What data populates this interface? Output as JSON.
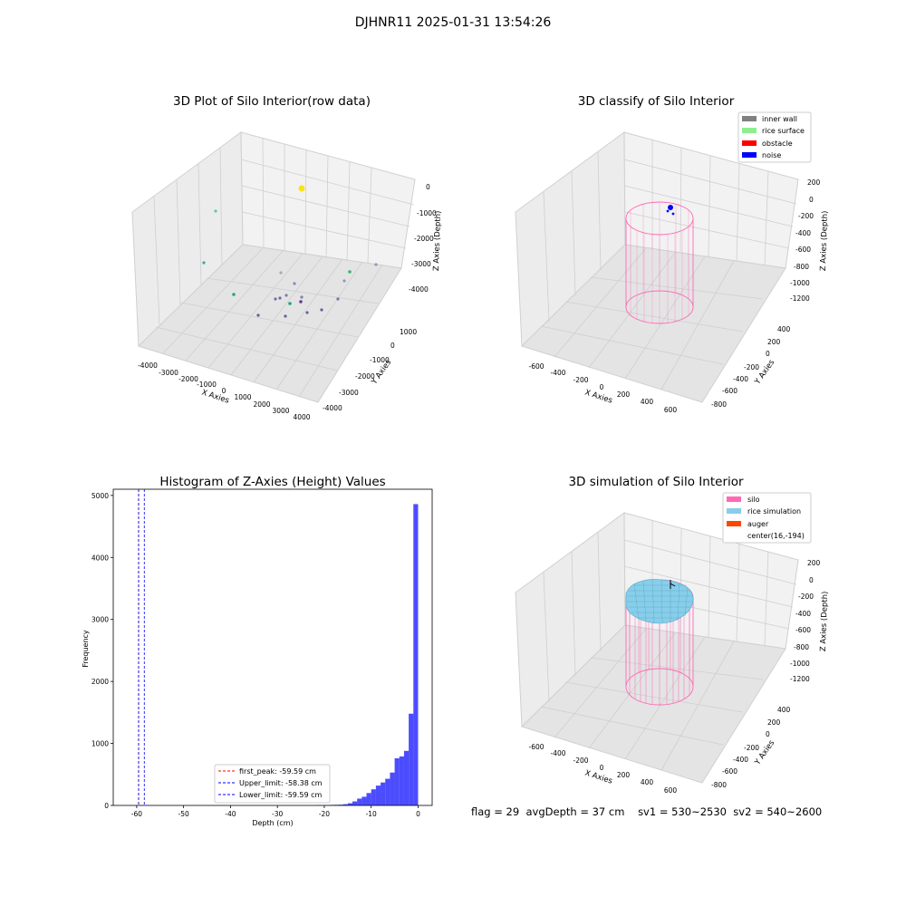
{
  "figure": {
    "suptitle": "DJHNR11 2025-01-31 13:54:26",
    "status": {
      "flag": "flag = 29",
      "avg_depth": "avgDepth = 37 cm",
      "sv1": "sv1 = 530~2530",
      "sv2": "sv2 = 540~2600"
    }
  },
  "plot_raw": {
    "title": "3D Plot of Silo Interior(row data)",
    "xlabel": "X Axies",
    "ylabel": "Y Axies",
    "zlabel": "Z Axies (Depth)",
    "xticks": [
      "-4000",
      "-3000",
      "-2000",
      "-1000",
      "0",
      "1000",
      "2000",
      "3000",
      "4000"
    ],
    "yticks": [
      "1000",
      "0",
      "-1000",
      "-2000",
      "-3000",
      "-4000"
    ],
    "zticks": [
      "0",
      "-1000",
      "-2000",
      "-3000",
      "-4000"
    ]
  },
  "plot_classify": {
    "title": "3D classify of Silo Interior",
    "xlabel": "X Axies",
    "ylabel": "Y Axies",
    "zlabel": "Z Axies (Depth)",
    "xticks": [
      "-600",
      "-400",
      "-200",
      "0",
      "200",
      "400",
      "600"
    ],
    "yticks": [
      "400",
      "200",
      "0",
      "-200",
      "-400",
      "-600",
      "-800"
    ],
    "zticks": [
      "200",
      "0",
      "-200",
      "-400",
      "-600",
      "-800",
      "-1000",
      "-1200"
    ],
    "legend": [
      {
        "label": "inner wall",
        "color": "#808080"
      },
      {
        "label": "rice surface",
        "color": "#90ee90"
      },
      {
        "label": "obstacle",
        "color": "#ff0000"
      },
      {
        "label": "noise",
        "color": "#0000ff"
      }
    ]
  },
  "plot_sim": {
    "title": "3D simulation of Silo Interior",
    "xlabel": "X Axies",
    "ylabel": "Y Axies",
    "zlabel": "Z Axies (Depth)",
    "xticks": [
      "-600",
      "-400",
      "-200",
      "0",
      "200",
      "400",
      "600"
    ],
    "yticks": [
      "400",
      "200",
      "0",
      "-200",
      "-400",
      "-600",
      "-800"
    ],
    "zticks": [
      "200",
      "0",
      "-200",
      "-400",
      "-600",
      "-800",
      "-1000",
      "-1200"
    ],
    "legend": [
      {
        "label": "silo",
        "color": "#ff69b4"
      },
      {
        "label": "rice simulation",
        "color": "#87ceeb"
      },
      {
        "label": "auger",
        "color": "#ff4500"
      },
      {
        "label": "center(16,-194)",
        "color": "none"
      }
    ]
  },
  "chart_data": {
    "type": "bar",
    "title": "Histogram of Z-Axies (Height) Values",
    "xlabel": "Depth (cm)",
    "ylabel": "Frequency",
    "xlim": [
      -65,
      3
    ],
    "ylim": [
      0,
      5100
    ],
    "xticks": [
      -60,
      -50,
      -40,
      -30,
      -20,
      -10,
      0
    ],
    "yticks": [
      0,
      1000,
      2000,
      3000,
      4000,
      5000
    ],
    "bar_color": "#0000ff",
    "bins": [
      {
        "x0": -22,
        "x1": -21,
        "count": 3
      },
      {
        "x0": -21,
        "x1": -20,
        "count": 4
      },
      {
        "x0": -20,
        "x1": -19,
        "count": 6
      },
      {
        "x0": -19,
        "x1": -18,
        "count": 8
      },
      {
        "x0": -18,
        "x1": -17,
        "count": 10
      },
      {
        "x0": -17,
        "x1": -16,
        "count": 12
      },
      {
        "x0": -16,
        "x1": -15,
        "count": 20
      },
      {
        "x0": -15,
        "x1": -14,
        "count": 35
      },
      {
        "x0": -14,
        "x1": -13,
        "count": 65
      },
      {
        "x0": -13,
        "x1": -12,
        "count": 110
      },
      {
        "x0": -12,
        "x1": -11,
        "count": 140
      },
      {
        "x0": -11,
        "x1": -10,
        "count": 200
      },
      {
        "x0": -10,
        "x1": -9,
        "count": 260
      },
      {
        "x0": -9,
        "x1": -8,
        "count": 320
      },
      {
        "x0": -8,
        "x1": -7,
        "count": 370
      },
      {
        "x0": -7,
        "x1": -6,
        "count": 430
      },
      {
        "x0": -6,
        "x1": -5,
        "count": 530
      },
      {
        "x0": -5,
        "x1": -4,
        "count": 760
      },
      {
        "x0": -4,
        "x1": -3,
        "count": 790
      },
      {
        "x0": -3,
        "x1": -2,
        "count": 880
      },
      {
        "x0": -2,
        "x1": -1,
        "count": 1480
      },
      {
        "x0": -1,
        "x1": 0,
        "count": 4860
      }
    ],
    "vlines": [
      {
        "label": "first_peak: -59.59 cm",
        "x": -59.59,
        "color": "#ff0000"
      },
      {
        "label": "Upper_limit: -58.38 cm",
        "x": -58.38,
        "color": "#0000ff"
      },
      {
        "label": "Lower_limit: -59.59 cm",
        "x": -59.59,
        "color": "#0000ff"
      }
    ]
  }
}
